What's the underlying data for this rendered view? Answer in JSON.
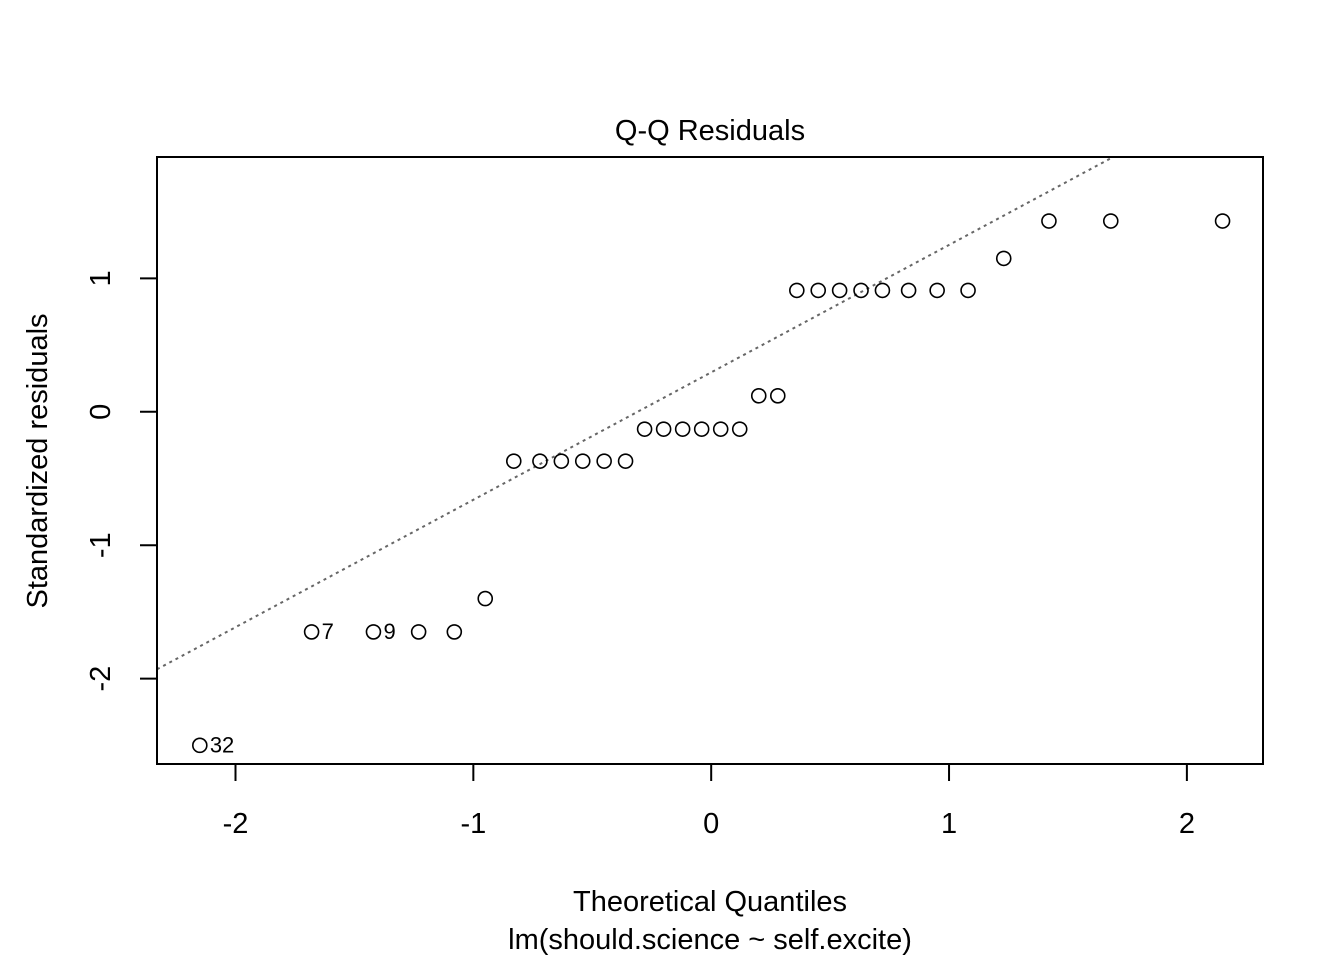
{
  "chart_data": {
    "type": "scatter",
    "title": "Q-Q Residuals",
    "xlabel": "Theoretical Quantiles",
    "subtitle": "lm(should.science ~ self.excite)",
    "ylabel": "Standardized residuals",
    "xlim": [
      -2.33,
      2.32
    ],
    "ylim": [
      -2.64,
      1.91
    ],
    "xticks": [
      -2,
      -1,
      0,
      1,
      2
    ],
    "xtick_labels": [
      "-2",
      "-1",
      "0",
      "1",
      "2"
    ],
    "yticks": [
      -2,
      -1,
      0,
      1
    ],
    "ytick_labels": [
      "-2",
      "-1",
      "0",
      "1"
    ],
    "points": [
      {
        "x": -2.15,
        "y": -2.5,
        "label": "32"
      },
      {
        "x": -1.68,
        "y": -1.65,
        "label": "7"
      },
      {
        "x": -1.42,
        "y": -1.65,
        "label": "9"
      },
      {
        "x": -1.23,
        "y": -1.65
      },
      {
        "x": -1.08,
        "y": -1.65
      },
      {
        "x": -0.95,
        "y": -1.4
      },
      {
        "x": -0.83,
        "y": -0.37
      },
      {
        "x": -0.72,
        "y": -0.37
      },
      {
        "x": -0.63,
        "y": -0.37
      },
      {
        "x": -0.54,
        "y": -0.37
      },
      {
        "x": -0.45,
        "y": -0.37
      },
      {
        "x": -0.36,
        "y": -0.37
      },
      {
        "x": -0.28,
        "y": -0.13
      },
      {
        "x": -0.2,
        "y": -0.13
      },
      {
        "x": -0.12,
        "y": -0.13
      },
      {
        "x": -0.04,
        "y": -0.13
      },
      {
        "x": 0.04,
        "y": -0.13
      },
      {
        "x": 0.12,
        "y": -0.13
      },
      {
        "x": 0.2,
        "y": 0.12
      },
      {
        "x": 0.28,
        "y": 0.12
      },
      {
        "x": 0.36,
        "y": 0.91
      },
      {
        "x": 0.45,
        "y": 0.91
      },
      {
        "x": 0.54,
        "y": 0.91
      },
      {
        "x": 0.63,
        "y": 0.91
      },
      {
        "x": 0.72,
        "y": 0.91
      },
      {
        "x": 0.83,
        "y": 0.91
      },
      {
        "x": 0.95,
        "y": 0.91
      },
      {
        "x": 1.08,
        "y": 0.91
      },
      {
        "x": 1.23,
        "y": 1.15
      },
      {
        "x": 1.42,
        "y": 1.43
      },
      {
        "x": 1.68,
        "y": 1.43
      },
      {
        "x": 2.15,
        "y": 1.43
      }
    ],
    "reference_line": {
      "style": "dotted",
      "color": "#666666",
      "p1": [
        -2.33,
        -1.93
      ],
      "p2": [
        1.69,
        1.91
      ]
    },
    "grid": false,
    "legend": "none"
  }
}
